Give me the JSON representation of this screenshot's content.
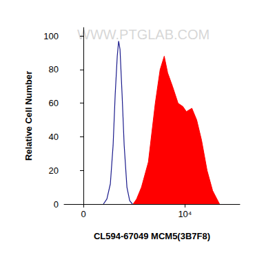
{
  "chart_data": {
    "type": "line",
    "x_label": "CL594-67049 MCM5(3B7F8)",
    "y_label": "Relative Cell Number",
    "annotations": [
      "WWW.PTGLAB.COM"
    ],
    "xlim": [
      -1900,
      15400
    ],
    "xticks": [
      0,
      {
        "value": 10000,
        "label": "10⁴"
      }
    ],
    "ylim": [
      0,
      105
    ],
    "yticks": [
      0,
      20,
      40,
      60,
      80,
      100
    ],
    "grid": false,
    "series": [
      {
        "type": "line",
        "color": "#1a1a8c",
        "x": [
          1973,
          2313,
          2653,
          2925,
          3129,
          3333,
          3469,
          3605,
          3810,
          4014,
          4286,
          4558,
          4830
        ],
        "values": [
          0,
          3,
          12,
          35,
          65,
          88,
          97,
          92,
          65,
          35,
          10,
          2,
          0
        ]
      },
      {
        "type": "area",
        "color": "#ff0000",
        "x": [
          4898,
          5238,
          5714,
          6395,
          7075,
          7551,
          7959,
          8299,
          8776,
          9320,
          9796,
          10136,
          10680,
          11156,
          11633,
          12177,
          12721,
          13401
        ],
        "values": [
          0,
          3,
          10,
          25,
          60,
          80,
          88,
          78,
          70,
          60,
          58,
          55,
          57,
          50,
          38,
          20,
          8,
          0
        ]
      }
    ]
  }
}
